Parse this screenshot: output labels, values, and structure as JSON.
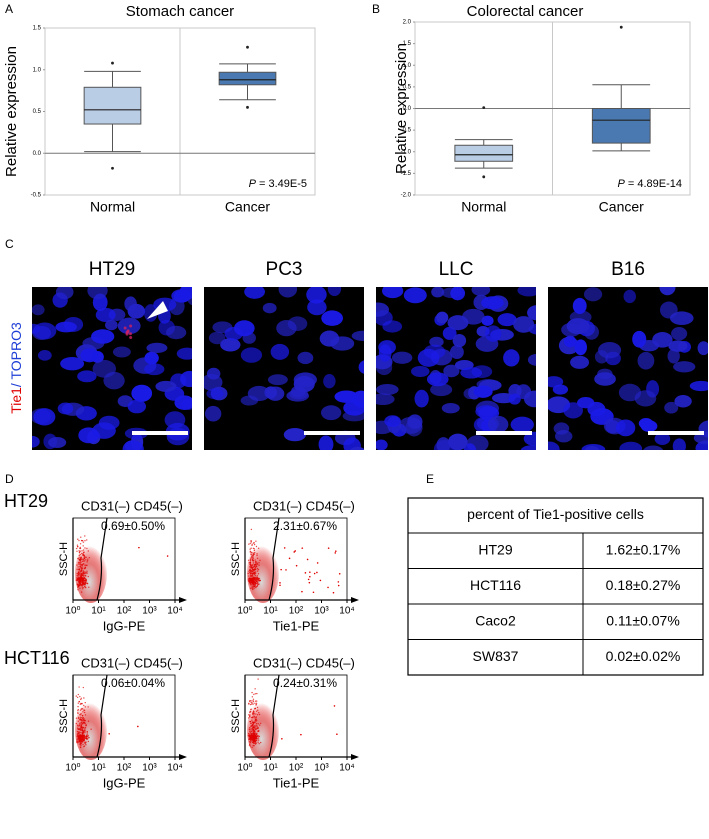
{
  "chart_data": [
    {
      "type": "box",
      "panel_label": "A",
      "title": "Stomach cancer",
      "y_label": "Relative expression",
      "categories": [
        "Normal",
        "Cancer"
      ],
      "colors": [
        "#b9cde5",
        "#4a78b0"
      ],
      "boxes": [
        {
          "whisker_low": 0.02,
          "q1": 0.35,
          "median": 0.52,
          "q3": 0.79,
          "whisker_high": 0.98,
          "outliers": [
            1.08,
            -0.18
          ]
        },
        {
          "whisker_low": 0.64,
          "q1": 0.82,
          "median": 0.88,
          "q3": 0.97,
          "whisker_high": 1.07,
          "outliers": [
            1.27,
            0.55
          ]
        }
      ],
      "ylim": [
        -0.5,
        1.5
      ],
      "yticks": [
        -0.5,
        {
          "value": 0,
          "label": "0.0"
        },
        0.5,
        {
          "value": 1,
          "label": "1.0"
        },
        1.5
      ],
      "reference_line": 0,
      "annotation": {
        "symbol": "P",
        "text": " = 3.49E-5"
      }
    },
    {
      "type": "box",
      "panel_label": "B",
      "title": "Colorectal cancer",
      "y_label": "Relative expression",
      "categories": [
        "Normal",
        "Cancer"
      ],
      "colors": [
        "#b9cde5",
        "#4a78b0"
      ],
      "boxes": [
        {
          "whisker_low": -1.38,
          "q1": -1.22,
          "median": -1.07,
          "q3": -0.85,
          "whisker_high": -0.72,
          "outliers": [
            0.02,
            -1.58
          ]
        },
        {
          "whisker_low": -0.98,
          "q1": -0.8,
          "median": -0.27,
          "q3": 0,
          "whisker_high": 0.55,
          "outliers": [
            1.88
          ]
        }
      ],
      "ylim": [
        -2,
        2
      ],
      "yticks": [
        {
          "value": -2,
          "label": "-2.0"
        },
        -1.5,
        {
          "value": -1,
          "label": "-1.0"
        },
        -0.5,
        {
          "value": 0,
          "label": "0.0"
        },
        0.5,
        {
          "value": 1,
          "label": "1.0"
        },
        1.5,
        {
          "value": 2,
          "label": "2.0"
        }
      ],
      "reference_line": 0,
      "annotation": {
        "symbol": "P",
        "text": " = 4.89E-14"
      }
    }
  ],
  "panel_c": {
    "label": "C",
    "stain_red": "Tie1",
    "stain_blue": "/ TOPRO3",
    "images": [
      "HT29",
      "PC3",
      "LLC",
      "B16"
    ]
  },
  "panel_d": {
    "label": "D",
    "xtick_labels": [
      "10⁰",
      "10¹",
      "10²",
      "10³",
      "10⁴"
    ],
    "rows": [
      {
        "cell_line": "HT29",
        "plots": [
          {
            "gate": "CD31(–)  CD45(–)",
            "percent": "0.69±0.50%",
            "y_label": "SSC-H",
            "x_label": "IgG-PE"
          },
          {
            "gate": "CD31(–)  CD45(–)",
            "percent": "2.31±0.67%",
            "y_label": "SSC-H",
            "x_label": "Tie1-PE"
          }
        ]
      },
      {
        "cell_line": "HCT116",
        "plots": [
          {
            "gate": "CD31(–)  CD45(–)",
            "percent": "0.06±0.04%",
            "y_label": "SSC-H",
            "x_label": "IgG-PE"
          },
          {
            "gate": "CD31(–)  CD45(–)",
            "percent": "0.24±0.31%",
            "y_label": "SSC-H",
            "x_label": "Tie1-PE"
          }
        ]
      }
    ]
  },
  "panel_e": {
    "label": "E",
    "table": {
      "header": "percent of Tie1-positive cells",
      "rows": [
        [
          "HT29",
          "1.62±0.17%"
        ],
        [
          "HCT116",
          "0.18±0.27%"
        ],
        [
          "Caco2",
          "0.11±0.07%"
        ],
        [
          "SW837",
          "0.02±0.02%"
        ]
      ]
    }
  }
}
